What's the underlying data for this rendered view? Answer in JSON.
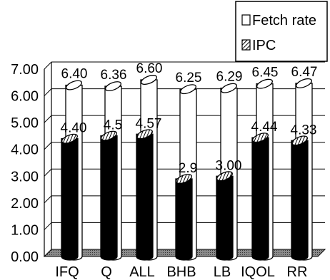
{
  "chart_data": {
    "type": "bar",
    "categories": [
      "IFQ",
      "Q",
      "ALL",
      "BHB",
      "LB",
      "IQOL",
      "RR"
    ],
    "series": [
      {
        "name": "Fetch rate",
        "values": [
          6.4,
          6.36,
          6.6,
          6.25,
          6.29,
          6.45,
          6.47
        ],
        "labels": [
          "6.40",
          "6.36",
          "6.60",
          "6.25",
          "6.29",
          "6.45",
          "6.47"
        ]
      },
      {
        "name": "IPC",
        "values": [
          4.4,
          4.51,
          4.57,
          2.9,
          3.0,
          4.44,
          4.33
        ],
        "labels": [
          "4.40",
          "4.5",
          "4.57",
          "2.9",
          "3.00",
          "4.44",
          "4.33"
        ]
      }
    ],
    "ylim": [
      0,
      7
    ],
    "yticks": [
      "0.00",
      "1.00",
      "2.00",
      "3.00",
      "4.00",
      "5.00",
      "6.00",
      "7.00"
    ],
    "grid": true,
    "legend": "top-right",
    "colors": {
      "fetch": "#ffffff",
      "ipc": "#000000",
      "floor": "#666666"
    }
  }
}
